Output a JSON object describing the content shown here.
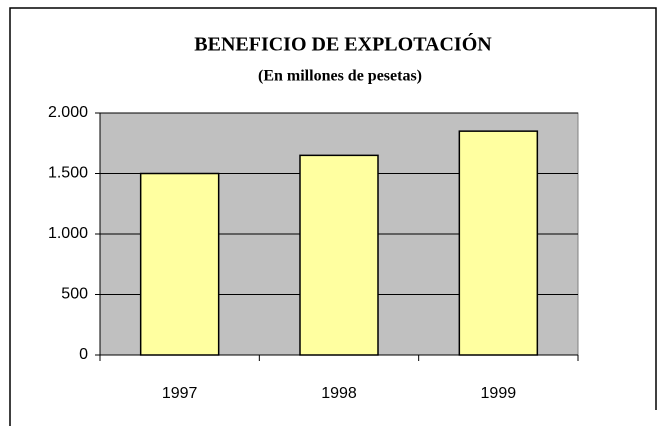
{
  "chart_data": {
    "type": "bar",
    "title": "BENEFICIO DE EXPLOTACIÓN",
    "subtitle": "(En millones de pesetas)",
    "categories": [
      "1997",
      "1998",
      "1999"
    ],
    "values": [
      1500,
      1650,
      1850
    ],
    "color": "#ffffa0",
    "ylim": [
      0,
      2000
    ],
    "yticks": [
      0,
      500,
      {
        "value": 1000,
        "label": "1.000"
      },
      {
        "value": 1500,
        "label": "1.500"
      },
      {
        "value": 2000,
        "label": "2.000"
      }
    ],
    "grid": true
  }
}
